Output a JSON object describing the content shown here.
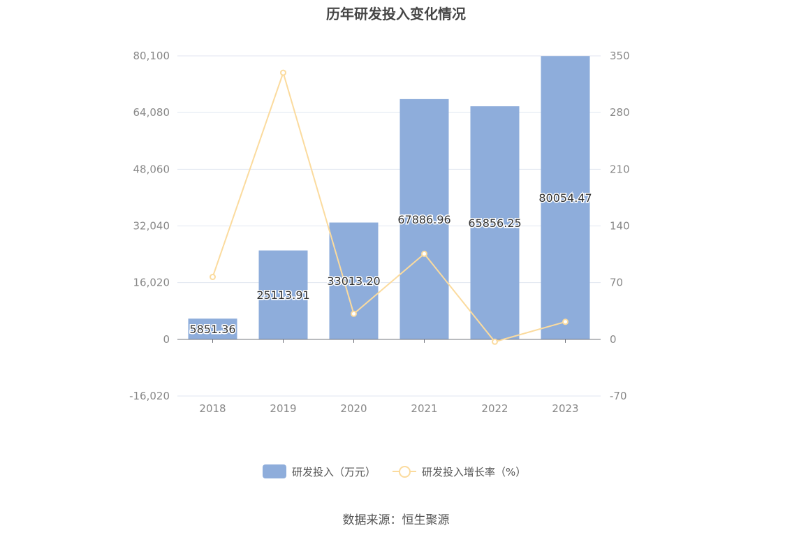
{
  "chart_data": {
    "type": "bar",
    "title": "历年研发投入变化情况",
    "categories": [
      "2018",
      "2019",
      "2020",
      "2021",
      "2022",
      "2023"
    ],
    "series": [
      {
        "name": "研发投入（万元）",
        "type": "bar",
        "axis": "left",
        "values": [
          5851.36,
          25113.91,
          33013.2,
          67886.96,
          65856.25,
          80054.47
        ],
        "labels": [
          "5851.36",
          "25113.91",
          "33013.20",
          "67886.96",
          "65856.25",
          "80054.47"
        ],
        "color": "#8eaddb"
      },
      {
        "name": "研发投入增长率（%）",
        "type": "line",
        "axis": "right",
        "values": [
          77,
          329.2,
          31.5,
          105.6,
          -3.0,
          21.6
        ],
        "color": "#fbdb9e"
      }
    ],
    "y_left": {
      "ylim": [
        -16020,
        80100
      ],
      "ticks": [
        -16020,
        0,
        16020,
        32040,
        48060,
        64080,
        80100
      ],
      "tick_labels": [
        "-16,020",
        "0",
        "16,020",
        "32,040",
        "48,060",
        "64,080",
        "80,100"
      ]
    },
    "y_right": {
      "ylim": [
        -70,
        350
      ],
      "ticks": [
        -70,
        0,
        70,
        140,
        210,
        280,
        350
      ],
      "tick_labels": [
        "-70",
        "0",
        "70",
        "140",
        "210",
        "280",
        "350"
      ]
    },
    "grid": true,
    "legend_position": "bottom"
  },
  "source_text": "数据来源：恒生聚源"
}
